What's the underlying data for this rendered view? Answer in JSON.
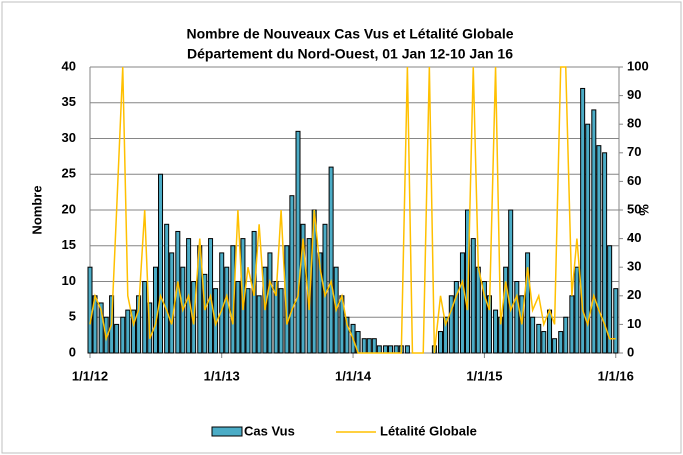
{
  "chart_data": {
    "type": "bar-line",
    "title": [
      "Nombre de Nouveaux Cas Vus et Létalité Globale",
      "Département du Nord-Ouest, 01 Jan 12-10 Jan 16"
    ],
    "ylabel": "Nombre",
    "y2label": "%",
    "x": [
      "1/1/12",
      "1/15/12",
      "2/1/12",
      "2/15/12",
      "3/1/12",
      "3/15/12",
      "4/1/12",
      "4/15/12",
      "5/1/12",
      "5/15/12",
      "6/1/12",
      "6/15/12",
      "7/1/12",
      "7/15/12",
      "8/1/12",
      "8/15/12",
      "9/1/12",
      "9/15/12",
      "10/1/12",
      "10/15/12",
      "11/1/12",
      "11/15/12",
      "12/1/12",
      "12/15/12",
      "1/1/13",
      "1/15/13",
      "2/1/13",
      "2/15/13",
      "3/1/13",
      "3/15/13",
      "4/1/13",
      "4/15/13",
      "5/1/13",
      "5/15/13",
      "6/1/13",
      "6/15/13",
      "7/1/13",
      "7/15/13",
      "8/1/13",
      "8/15/13",
      "9/1/13",
      "9/15/13",
      "10/1/13",
      "10/15/13",
      "11/1/13",
      "11/15/13",
      "12/1/13",
      "12/15/13",
      "1/1/14",
      "1/15/14",
      "2/1/14",
      "2/15/14",
      "3/1/14",
      "3/15/14",
      "4/1/14",
      "4/15/14",
      "5/1/14",
      "5/15/14",
      "6/1/14",
      "6/15/14",
      "7/1/14",
      "7/15/14",
      "8/1/14",
      "8/15/14",
      "9/1/14",
      "9/15/14",
      "10/1/14",
      "10/15/14",
      "11/1/14",
      "11/15/14",
      "12/1/14",
      "12/15/14",
      "1/1/15",
      "1/15/15",
      "2/1/15",
      "2/15/15",
      "3/1/15",
      "3/15/15",
      "4/1/15",
      "4/15/15",
      "5/1/15",
      "5/15/15",
      "6/1/15",
      "6/15/15",
      "7/1/15",
      "7/15/15",
      "8/1/15",
      "8/15/15",
      "9/1/15",
      "9/15/15",
      "10/1/15",
      "10/15/15",
      "11/1/15",
      "11/15/15",
      "12/1/15",
      "12/15/15",
      "1/1/16"
    ],
    "series": [
      {
        "name": "Cas Vus",
        "color": "#4bacc6",
        "kind": "bar",
        "values": [
          12,
          8,
          7,
          5,
          8,
          4,
          5,
          6,
          6,
          8,
          10,
          7,
          12,
          25,
          18,
          14,
          17,
          12,
          16,
          10,
          15,
          11,
          16,
          9,
          14,
          12,
          15,
          10,
          16,
          9,
          17,
          8,
          12,
          14,
          10,
          9,
          15,
          22,
          31,
          18,
          16,
          20,
          14,
          18,
          26,
          12,
          8,
          5,
          4,
          3,
          2,
          2,
          2,
          1,
          1,
          1,
          1,
          1,
          1,
          0,
          0,
          0,
          0,
          1,
          3,
          5,
          8,
          10,
          14,
          20,
          16,
          12,
          10,
          8,
          6,
          5,
          12,
          20,
          10,
          8,
          14,
          5,
          4,
          3,
          6,
          2,
          3,
          5,
          8,
          12,
          37,
          32,
          34,
          29,
          28,
          15,
          9
        ]
      },
      {
        "name": "Létalité Globale",
        "color": "#ffc000",
        "kind": "line",
        "axis": "y2",
        "values": [
          10,
          20,
          15,
          5,
          10,
          50,
          100,
          20,
          10,
          15,
          50,
          5,
          10,
          20,
          15,
          10,
          25,
          15,
          20,
          10,
          40,
          15,
          20,
          10,
          15,
          20,
          10,
          50,
          15,
          30,
          20,
          45,
          15,
          25,
          20,
          50,
          10,
          15,
          20,
          40,
          15,
          50,
          30,
          20,
          25,
          15,
          20,
          10,
          5,
          0,
          0,
          0,
          0,
          0,
          0,
          0,
          0,
          0,
          100,
          0,
          0,
          0,
          100,
          0,
          20,
          10,
          15,
          20,
          25,
          15,
          100,
          30,
          20,
          15,
          100,
          10,
          25,
          15,
          20,
          10,
          30,
          15,
          20,
          10,
          15,
          10,
          100,
          100,
          20,
          40,
          15,
          10,
          20,
          15,
          10,
          5,
          5
        ]
      }
    ],
    "xlim": [
      "1/1/12",
      "1/10/16"
    ],
    "xticks": [
      "1/1/12",
      "1/1/13",
      "1/1/14",
      "1/1/15",
      "1/1/16"
    ],
    "ylim": [
      0,
      40
    ],
    "yticks": [
      0,
      5,
      10,
      15,
      20,
      25,
      30,
      35,
      40
    ],
    "y2lim": [
      0,
      100
    ],
    "y2ticks": [
      0,
      10,
      20,
      30,
      40,
      50,
      60,
      70,
      80,
      90,
      100
    ],
    "grid": true,
    "legend": "bottom"
  }
}
